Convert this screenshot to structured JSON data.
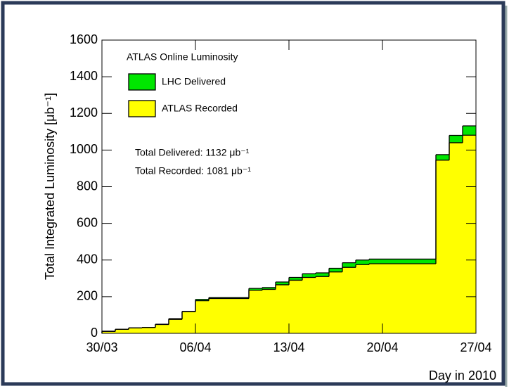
{
  "chart_data": {
    "type": "step-area",
    "legend_title": "ATLAS Online Luminosity",
    "y_label": "Total Integrated Luminosity [μb⁻¹]",
    "x_label": "Day in 2010",
    "annotations": [
      "Total Delivered: 1132 μb⁻¹",
      "Total Recorded: 1081 μb⁻¹"
    ],
    "x": [
      "30/03",
      "31/03",
      "01/04",
      "02/04",
      "03/04",
      "04/04",
      "05/04",
      "06/04",
      "07/04",
      "08/04",
      "09/04",
      "10/04",
      "11/04",
      "12/04",
      "13/04",
      "14/04",
      "15/04",
      "16/04",
      "17/04",
      "18/04",
      "19/04",
      "20/04",
      "21/04",
      "22/04",
      "23/04",
      "24/04",
      "25/04",
      "26/04"
    ],
    "xlim": [
      "30/03",
      "27/04"
    ],
    "xticks": [
      "30/03",
      "06/04",
      "13/04",
      "20/04",
      "27/04"
    ],
    "series": [
      {
        "name": "LHC Delivered",
        "color": "#00e600",
        "values": [
          12,
          22,
          30,
          32,
          50,
          80,
          120,
          185,
          195,
          195,
          195,
          245,
          250,
          280,
          305,
          325,
          330,
          355,
          385,
          400,
          405,
          405,
          405,
          405,
          405,
          975,
          1080,
          1132
        ]
      },
      {
        "name": "ATLAS Recorded",
        "color": "#ffff00",
        "values": [
          10,
          22,
          30,
          32,
          48,
          76,
          118,
          178,
          190,
          190,
          190,
          235,
          240,
          265,
          290,
          305,
          310,
          335,
          360,
          375,
          380,
          380,
          380,
          380,
          380,
          945,
          1040,
          1081
        ]
      }
    ],
    "ylim": [
      0,
      1600
    ],
    "yticks": [
      0,
      200,
      400,
      600,
      800,
      1000,
      1200,
      1400,
      1600
    ],
    "legend": "upper-left"
  }
}
